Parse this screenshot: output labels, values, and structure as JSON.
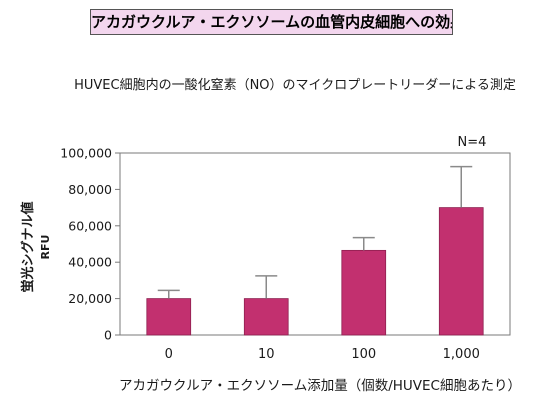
{
  "header": {
    "title": "アカガウクルア・エクソソームの血管内皮細胞への効果"
  },
  "chart_data": {
    "type": "bar",
    "subtitle": "HUVEC細胞内の一酸化窒素（NO）のマイクロプレートリーダーによる測定",
    "annotation": "N=4",
    "categories": [
      "0",
      "10",
      "100",
      "1,000"
    ],
    "series": [
      {
        "values": [
          20000,
          20000,
          46500,
          70000
        ],
        "error_upper": [
          24500,
          32500,
          53500,
          92500
        ]
      }
    ],
    "xlabel": "アカガウクルア・エクソソーム添加量（個数/HUVEC細胞あたり）",
    "ylabel": "蛍光シグナル値",
    "ylabel_unit": "RFU",
    "ylim": [
      0,
      100000
    ],
    "yticks": [
      0,
      20000,
      40000,
      60000,
      80000,
      100000
    ],
    "ytick_labels": [
      "0",
      "20,000",
      "40,000",
      "60,000",
      "80,000",
      "100,000"
    ],
    "grid": false,
    "legend": "none",
    "colors": {
      "bar": "#c2306f",
      "bar_edge": "#8e1f4f",
      "axis": "#7a7a7a",
      "error": "#8a8a8a",
      "title_fill": "#f3d6ee"
    }
  }
}
